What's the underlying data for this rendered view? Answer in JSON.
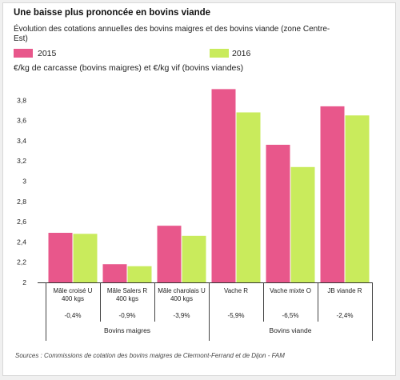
{
  "title": "Une baisse plus prononcée en bovins viande",
  "subtitle": "Évolution des cotations annuelles des bovins maigres et des bovins viande (zone Centre-Est)",
  "unit_label": "€/kg de carcasse (bovins maigres) et €/kg vif (bovins viandes)",
  "source": "Sources : Commissions de cotation des bovins maigres de Clermont-Ferrand et de Dijon - FAM",
  "colors": {
    "2015": "#e8578b",
    "2016": "#c9eb5c"
  },
  "chart_data": {
    "type": "bar",
    "categories": [
      {
        "lines": [
          "Mâle croisé U",
          "400 kgs"
        ],
        "change": "-0,4%"
      },
      {
        "lines": [
          "Mâle Salers R",
          "400 kgs"
        ],
        "change": "-0,9%"
      },
      {
        "lines": [
          "Mâle charolais U",
          "400 kgs"
        ],
        "change": "-3,9%"
      },
      {
        "lines": [
          "Vache R"
        ],
        "change": "-5,9%"
      },
      {
        "lines": [
          "Vache mixte O"
        ],
        "change": "-6,5%"
      },
      {
        "lines": [
          "JB viande R"
        ],
        "change": "-2,4%"
      }
    ],
    "groups": [
      {
        "label": "Bovins maigres",
        "from": 0,
        "to": 2
      },
      {
        "label": "Bovins viande",
        "from": 3,
        "to": 5
      }
    ],
    "series": [
      {
        "name": "2015",
        "values": [
          2.49,
          2.18,
          2.56,
          3.91,
          3.36,
          3.74
        ]
      },
      {
        "name": "2016",
        "values": [
          2.48,
          2.16,
          2.46,
          3.68,
          3.14,
          3.65
        ]
      }
    ],
    "ylim": [
      2,
      4
    ],
    "yticks": [
      "2",
      "2,2",
      "2,4",
      "2,6",
      "2,8",
      "3",
      "3,2",
      "3,4",
      "3,6",
      "3,8"
    ],
    "ytick_values": [
      2,
      2.2,
      2.4,
      2.6,
      2.8,
      3,
      3.2,
      3.4,
      3.6,
      3.8
    ],
    "grid": false,
    "legend_position": "top-left"
  }
}
